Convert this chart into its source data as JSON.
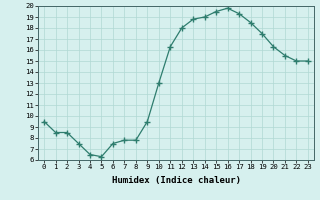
{
  "x": [
    0,
    1,
    2,
    3,
    4,
    5,
    6,
    7,
    8,
    9,
    10,
    11,
    12,
    13,
    14,
    15,
    16,
    17,
    18,
    19,
    20,
    21,
    22,
    23
  ],
  "y": [
    9.5,
    8.5,
    8.5,
    7.5,
    6.5,
    6.3,
    7.5,
    7.8,
    7.8,
    9.5,
    13.0,
    16.3,
    18.0,
    18.8,
    19.0,
    19.5,
    19.8,
    19.3,
    18.5,
    17.5,
    16.3,
    15.5,
    15.0,
    15.0
  ],
  "line_color": "#2e7d6e",
  "marker": "+",
  "marker_size": 4,
  "marker_lw": 1.0,
  "bg_color": "#d6f0ee",
  "grid_color": "#b0d8d4",
  "xlabel": "Humidex (Indice chaleur)",
  "ylim": [
    6,
    20
  ],
  "xlim_min": -0.5,
  "xlim_max": 23.5,
  "yticks": [
    6,
    7,
    8,
    9,
    10,
    11,
    12,
    13,
    14,
    15,
    16,
    17,
    18,
    19,
    20
  ],
  "xticks": [
    0,
    1,
    2,
    3,
    4,
    5,
    6,
    7,
    8,
    9,
    10,
    11,
    12,
    13,
    14,
    15,
    16,
    17,
    18,
    19,
    20,
    21,
    22,
    23
  ],
  "xtick_labels": [
    "0",
    "1",
    "2",
    "3",
    "4",
    "5",
    "6",
    "7",
    "8",
    "9",
    "10",
    "11",
    "12",
    "13",
    "14",
    "15",
    "16",
    "17",
    "18",
    "19",
    "20",
    "21",
    "22",
    "23"
  ],
  "tick_fontsize": 5.2,
  "xlabel_fontsize": 6.5,
  "linewidth": 0.9
}
